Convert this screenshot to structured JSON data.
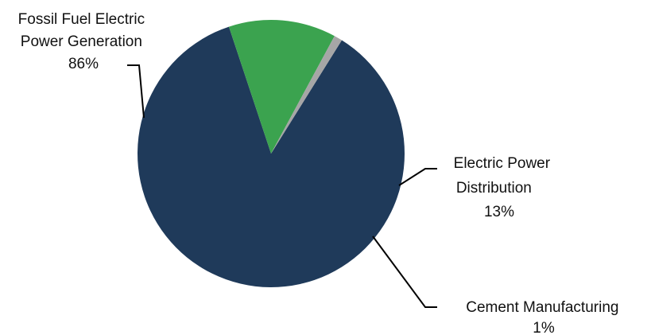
{
  "chart_data": {
    "type": "pie",
    "title": "",
    "legend": "none",
    "start_angle_deg": 58,
    "slices": [
      {
        "name": "Fossil Fuel Electric Power Generation",
        "label_lines": [
          "Fossil Fuel Electric",
          "Power Generation"
        ],
        "percent_label": "86%",
        "value": 86,
        "color": "#1f3a5a"
      },
      {
        "name": "Electric Power Distribution",
        "label_lines": [
          "Electric Power",
          "Distribution"
        ],
        "percent_label": "13%",
        "value": 13,
        "color": "#3ba34f"
      },
      {
        "name": "Cement Manufacturing",
        "label_lines": [
          "Cement Manufacturing"
        ],
        "percent_label": "1%",
        "value": 1,
        "color": "#a6a6a6"
      }
    ]
  }
}
